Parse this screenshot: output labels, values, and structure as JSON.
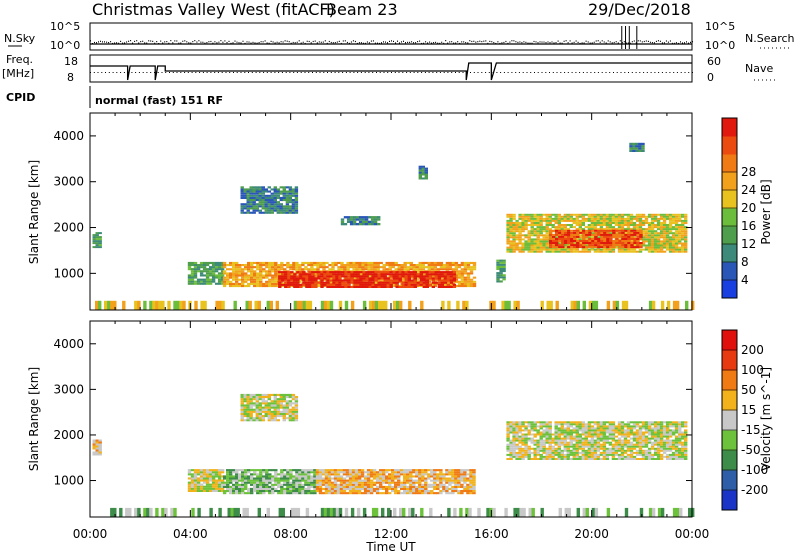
{
  "header": {
    "station": "Christmas Valley West (fitACF)",
    "beam": "Beam 23",
    "date": "29/Dec/2018"
  },
  "top_panels": {
    "nsky_label": "N.Sky",
    "nsearch_label": "N.Search",
    "nsky_ticks": [
      "10^5",
      "10^0"
    ],
    "nsearch_ticks": [
      "10^5",
      "10^0"
    ],
    "freq_label": "Freq.",
    "freq_unit": "[MHz]",
    "freq_ticks": [
      "18",
      "8"
    ],
    "nave_label": "Nave",
    "nave_ticks": [
      "60",
      "0"
    ],
    "cpid_label": "CPID",
    "cpid_text": "normal (fast) 151 RF"
  },
  "chart_data": [
    {
      "type": "heatmap",
      "name": "power",
      "ylabel": "Slant Range [km]",
      "xlabel": "Time UT",
      "ylim": [
        200,
        4500
      ],
      "yticks": [
        "1000",
        "2000",
        "3000",
        "4000"
      ],
      "colorbar": {
        "label": "Power [dB]",
        "ticks": [
          "4",
          "8",
          "12",
          "16",
          "20",
          "24",
          "28"
        ],
        "colors": [
          "#1a3fe0",
          "#2a56b8",
          "#3d8a7a",
          "#4f9e4e",
          "#6cbd3b",
          "#e8c320",
          "#f2a11c",
          "#f07a14",
          "#ec4b10",
          "#e0180d"
        ]
      },
      "regions": [
        {
          "t0": 0.1,
          "t1": 0.4,
          "r0": 1550,
          "r1": 1900,
          "level": 3
        },
        {
          "t0": 3.9,
          "t1": 5.3,
          "r0": 750,
          "r1": 1250,
          "level": 3
        },
        {
          "t0": 5.3,
          "t1": 15.3,
          "r0": 700,
          "r1": 1250,
          "level": 6
        },
        {
          "t0": 7.5,
          "t1": 14.5,
          "r0": 680,
          "r1": 1050,
          "level": 9
        },
        {
          "t0": 16.2,
          "t1": 16.5,
          "r0": 800,
          "r1": 1300,
          "level": 3
        },
        {
          "t0": 16.6,
          "t1": 23.7,
          "r0": 1450,
          "r1": 2300,
          "level": 5
        },
        {
          "t0": 18.3,
          "t1": 22.0,
          "r0": 1550,
          "r1": 1950,
          "level": 8
        },
        {
          "t0": 6.0,
          "t1": 8.2,
          "r0": 2300,
          "r1": 2900,
          "level": 2
        },
        {
          "t0": 10.0,
          "t1": 11.5,
          "r0": 2050,
          "r1": 2250,
          "level": 2
        },
        {
          "t0": 13.1,
          "t1": 13.4,
          "r0": 3050,
          "r1": 3350,
          "level": 2
        },
        {
          "t0": 21.5,
          "t1": 22.0,
          "r0": 3650,
          "r1": 3850,
          "level": 2
        },
        {
          "t0": 0.2,
          "t1": 24.0,
          "r0": 200,
          "r1": 400,
          "level": 5
        }
      ]
    },
    {
      "type": "heatmap",
      "name": "velocity",
      "ylabel": "Slant Range [km]",
      "xlabel": "Time UT",
      "ylim": [
        200,
        4500
      ],
      "yticks": [
        "1000",
        "2000",
        "3000",
        "4000"
      ],
      "colorbar": {
        "label": "Velocity [m s^-1]",
        "ticks": [
          "200",
          "100",
          "50",
          "15",
          "-15",
          "-50",
          "-100",
          "-200"
        ],
        "colors": [
          "#1a34c8",
          "#2f5ea8",
          "#3d8c4a",
          "#6cc23a",
          "#c8c8c8",
          "#f2b21c",
          "#f07a14",
          "#e83a10",
          "#e0100d"
        ]
      },
      "regions": [
        {
          "t0": 0.1,
          "t1": 0.4,
          "r0": 1550,
          "r1": 1900,
          "level": 5
        },
        {
          "t0": 3.9,
          "t1": 5.3,
          "r0": 750,
          "r1": 1250,
          "level": 4
        },
        {
          "t0": 5.3,
          "t1": 9.0,
          "r0": 700,
          "r1": 1250,
          "level": 3
        },
        {
          "t0": 9.0,
          "t1": 15.3,
          "r0": 700,
          "r1": 1250,
          "level": 5
        },
        {
          "t0": 16.6,
          "t1": 23.7,
          "r0": 1450,
          "r1": 2300,
          "level": 4
        },
        {
          "t0": 6.0,
          "t1": 8.2,
          "r0": 2300,
          "r1": 2900,
          "level": 4
        },
        {
          "t0": 0.2,
          "t1": 24.0,
          "r0": 200,
          "r1": 400,
          "level": 3
        }
      ]
    }
  ],
  "time_axis": {
    "ticks": [
      "00:00",
      "04:00",
      "08:00",
      "12:00",
      "16:00",
      "20:00",
      "00:00"
    ],
    "label": "Time UT"
  }
}
